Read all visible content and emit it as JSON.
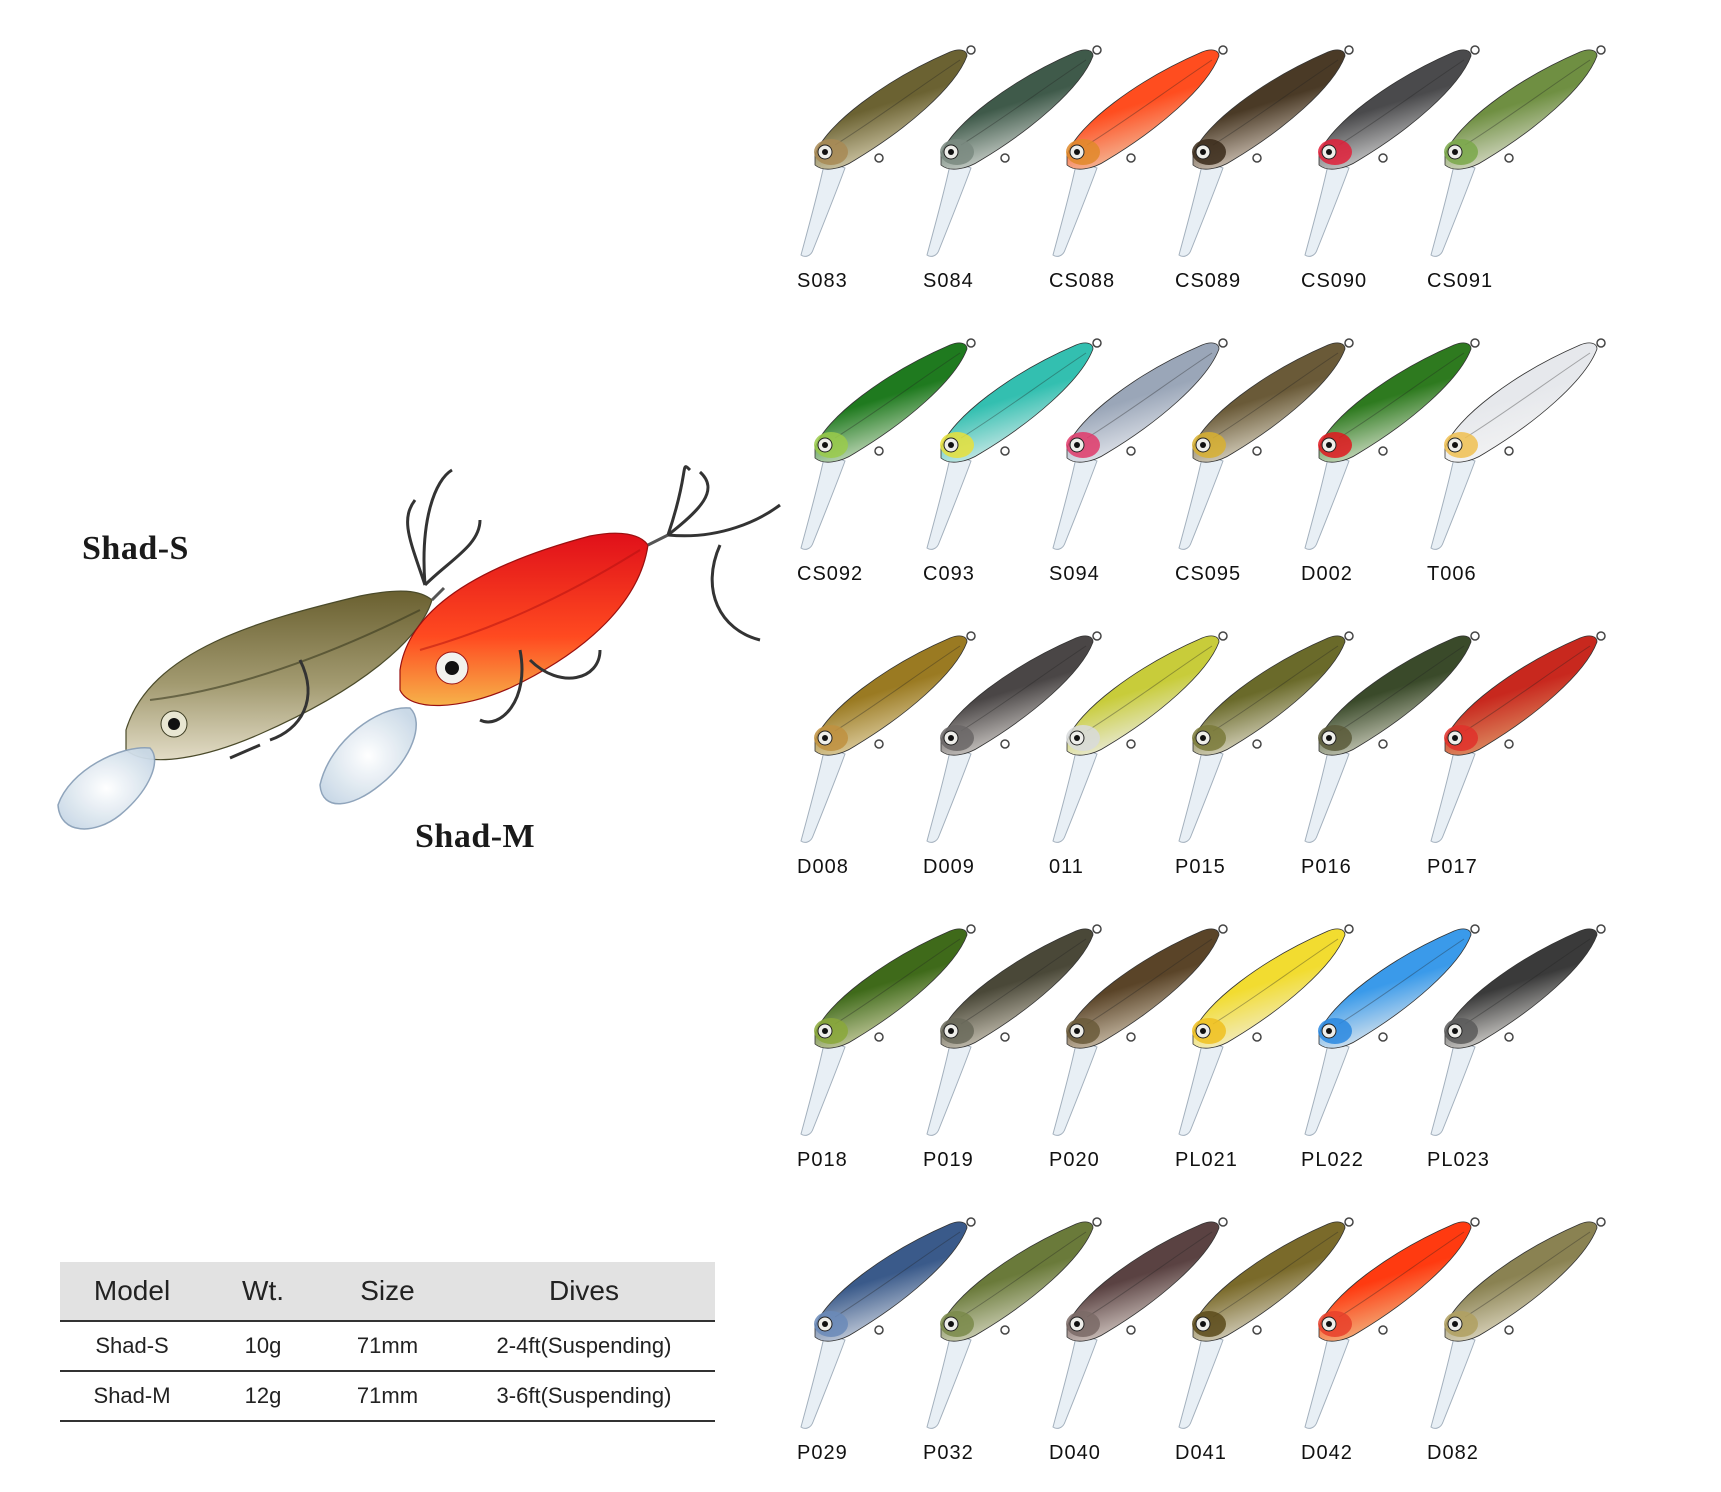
{
  "hero": {
    "shad_s_label": "Shad-S",
    "shad_m_label": "Shad-M"
  },
  "spec_table": {
    "headers": [
      "Model",
      "Wt.",
      "Size",
      "Dives"
    ],
    "rows": [
      [
        "Shad-S",
        "10g",
        "71mm",
        "2-4ft(Suspending)"
      ],
      [
        "Shad-M",
        "12g",
        "71mm",
        "3-6ft(Suspending)"
      ]
    ]
  },
  "color_rows": [
    [
      {
        "code": "S083",
        "back": "#6b6232",
        "belly": "#ded6b8",
        "head": "#a88a55"
      },
      {
        "code": "S084",
        "back": "#3f5a4a",
        "belly": "#dde0dc",
        "head": "#7a8a80"
      },
      {
        "code": "CS088",
        "back": "#ff4d1f",
        "belly": "#f2c7a8",
        "head": "#e08a2a"
      },
      {
        "code": "CS089",
        "back": "#4a3a26",
        "belly": "#e0d4c8",
        "head": "#3a2a1a"
      },
      {
        "code": "CS090",
        "back": "#4a4a4c",
        "belly": "#dcdcdc",
        "head": "#e0203a"
      },
      {
        "code": "CS091",
        "back": "#6f8f42",
        "belly": "#e3e3d6",
        "head": "#7aa84a"
      }
    ],
    [
      {
        "code": "CS092",
        "back": "#1f7a1f",
        "belly": "#d9e6d0",
        "head": "#9acb4a"
      },
      {
        "code": "C093",
        "back": "#33bfb0",
        "belly": "#dfeeee",
        "head": "#e8e03a"
      },
      {
        "code": "S094",
        "back": "#9aa6b8",
        "belly": "#ebedf2",
        "head": "#e03a6a"
      },
      {
        "code": "CS095",
        "back": "#6a5a38",
        "belly": "#e5e0d0",
        "head": "#d8b030"
      },
      {
        "code": "D002",
        "back": "#2e7a1f",
        "belly": "#e0e8d6",
        "head": "#e0181e"
      },
      {
        "code": "T006",
        "back": "#e6e8ec",
        "belly": "#f4f4f4",
        "head": "#f0c050"
      }
    ],
    [
      {
        "code": "D008",
        "back": "#9a7a22",
        "belly": "#e6d8b0",
        "head": "#c09040"
      },
      {
        "code": "D009",
        "back": "#4a4646",
        "belly": "#dcd8d4",
        "head": "#6a6666"
      },
      {
        "code": "011",
        "back": "#c8cc3a",
        "belly": "#eeeeee",
        "head": "#d8dadc"
      },
      {
        "code": "P015",
        "back": "#6a6a2a",
        "belly": "#e6e2d2",
        "head": "#7a7a3a"
      },
      {
        "code": "P016",
        "back": "#3a4a2a",
        "belly": "#d8d8c8",
        "head": "#5a5a3a"
      },
      {
        "code": "P017",
        "back": "#c8281e",
        "belly": "#e09a6a",
        "head": "#e0302a"
      }
    ],
    [
      {
        "code": "P018",
        "back": "#3f6a1a",
        "belly": "#d8d8b0",
        "head": "#8aa83a"
      },
      {
        "code": "P019",
        "back": "#4a4838",
        "belly": "#d8d2c4",
        "head": "#6a6a5a"
      },
      {
        "code": "P020",
        "back": "#5a4428",
        "belly": "#d8ccb8",
        "head": "#6a5a3a"
      },
      {
        "code": "PL021",
        "back": "#f2dc30",
        "belly": "#f2eed8",
        "head": "#f0c020"
      },
      {
        "code": "PL022",
        "back": "#3a9aea",
        "belly": "#eeeeee",
        "head": "#2a88e0"
      },
      {
        "code": "PL023",
        "back": "#3a3a3a",
        "belly": "#e6e4e0",
        "head": "#5a5a5a"
      }
    ],
    [
      {
        "code": "P029",
        "back": "#3a5a8a",
        "belly": "#d8dde6",
        "head": "#6a8ab8"
      },
      {
        "code": "P032",
        "back": "#6a7a3a",
        "belly": "#dcdcc8",
        "head": "#7a8a4a"
      },
      {
        "code": "D040",
        "back": "#5a4242",
        "belly": "#e0d6d0",
        "head": "#7a6a66"
      },
      {
        "code": "D041",
        "back": "#7a6a2a",
        "belly": "#e0dcd0",
        "head": "#5a4a1a"
      },
      {
        "code": "D042",
        "back": "#ff3a10",
        "belly": "#f0c08a",
        "head": "#e8402a"
      },
      {
        "code": "D082",
        "back": "#8a8252",
        "belly": "#e6e0cc",
        "head": "#b0a060"
      }
    ]
  ]
}
